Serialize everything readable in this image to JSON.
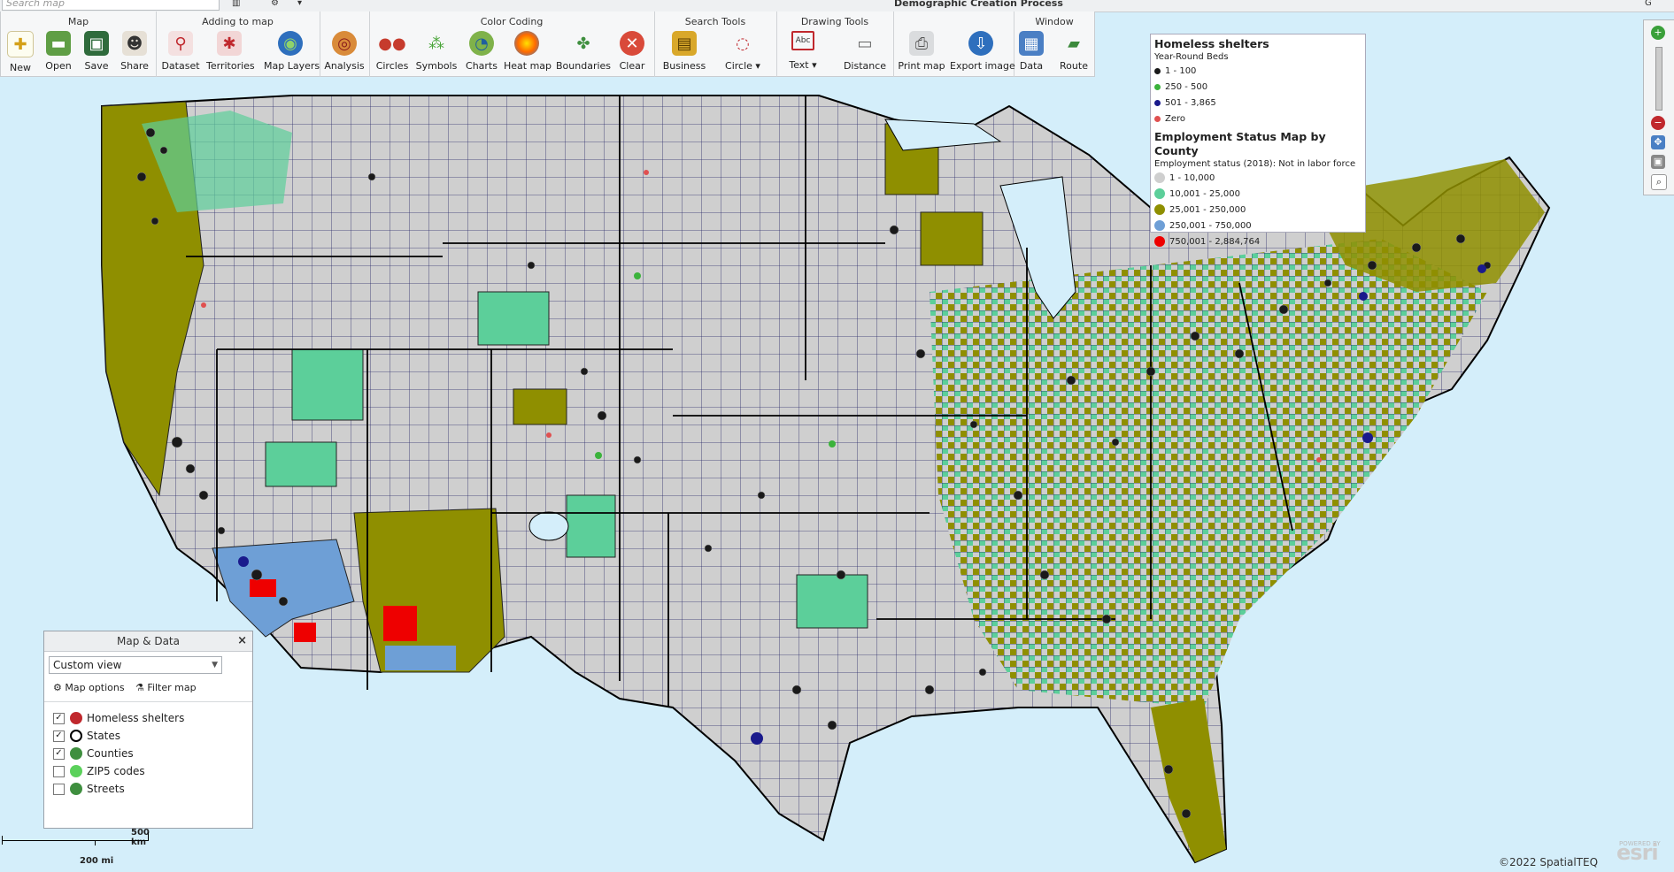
{
  "window": {
    "title": "Demographic Creation Process"
  },
  "search": {
    "placeholder": "Search map"
  },
  "ribbon": {
    "groups": [
      {
        "title": "Map",
        "tools": [
          "New",
          "Open",
          "Save",
          "Share"
        ]
      },
      {
        "title": "Adding to map",
        "tools": [
          "Dataset",
          "Territories",
          "Map Layers"
        ]
      },
      {
        "title": "",
        "tools": [
          "Analysis"
        ]
      },
      {
        "title": "Color Coding",
        "tools": [
          "Circles",
          "Symbols",
          "Charts",
          "Heat map",
          "Boundaries",
          "Clear"
        ]
      },
      {
        "title": "Search Tools",
        "tools": [
          "Business",
          "Circle"
        ]
      },
      {
        "title": "Drawing Tools",
        "tools": [
          "Text",
          "Distance"
        ]
      },
      {
        "title": "",
        "tools": [
          "Print map",
          "Export image"
        ]
      },
      {
        "title": "Window",
        "tools": [
          "Data",
          "Route"
        ]
      }
    ]
  },
  "legend": {
    "shelters_title": "Homeless shelters",
    "shelters_sub": "Year-Round Beds",
    "shelters_items": [
      {
        "label": "1 - 100",
        "color": "#1a1a1a"
      },
      {
        "label": "250 - 500",
        "color": "#3bb33b"
      },
      {
        "label": "501 - 3,865",
        "color": "#1a1a8c"
      },
      {
        "label": "Zero",
        "color": "#e05050"
      }
    ],
    "employment_title": "Employment Status Map by County",
    "employment_sub": "Employment status (2018): Not in labor force",
    "employment_items": [
      {
        "label": "1 - 10,000",
        "color": "#cfcfcf"
      },
      {
        "label": "10,001 - 25,000",
        "color": "#5ccf9a"
      },
      {
        "label": "25,001 - 250,000",
        "color": "#8f8f00"
      },
      {
        "label": "250,001 - 750,000",
        "color": "#6e9fd6"
      },
      {
        "label": "750,001 - 2,884,764",
        "color": "#ee0000"
      }
    ]
  },
  "panel": {
    "title": "Map & Data",
    "view": "Custom view",
    "map_options": "Map options",
    "filter_map": "Filter map",
    "layers": [
      {
        "label": "Homeless shelters",
        "checked": true
      },
      {
        "label": "States",
        "checked": true
      },
      {
        "label": "Counties",
        "checked": true
      },
      {
        "label": "ZIP5 codes",
        "checked": false
      },
      {
        "label": "Streets",
        "checked": false
      }
    ]
  },
  "scale": {
    "km": "500 km",
    "mi": "200 mi"
  },
  "copyright": "©2022 SpatialTEQ",
  "attribution": "esri",
  "attribution_sub": "POWERED BY"
}
